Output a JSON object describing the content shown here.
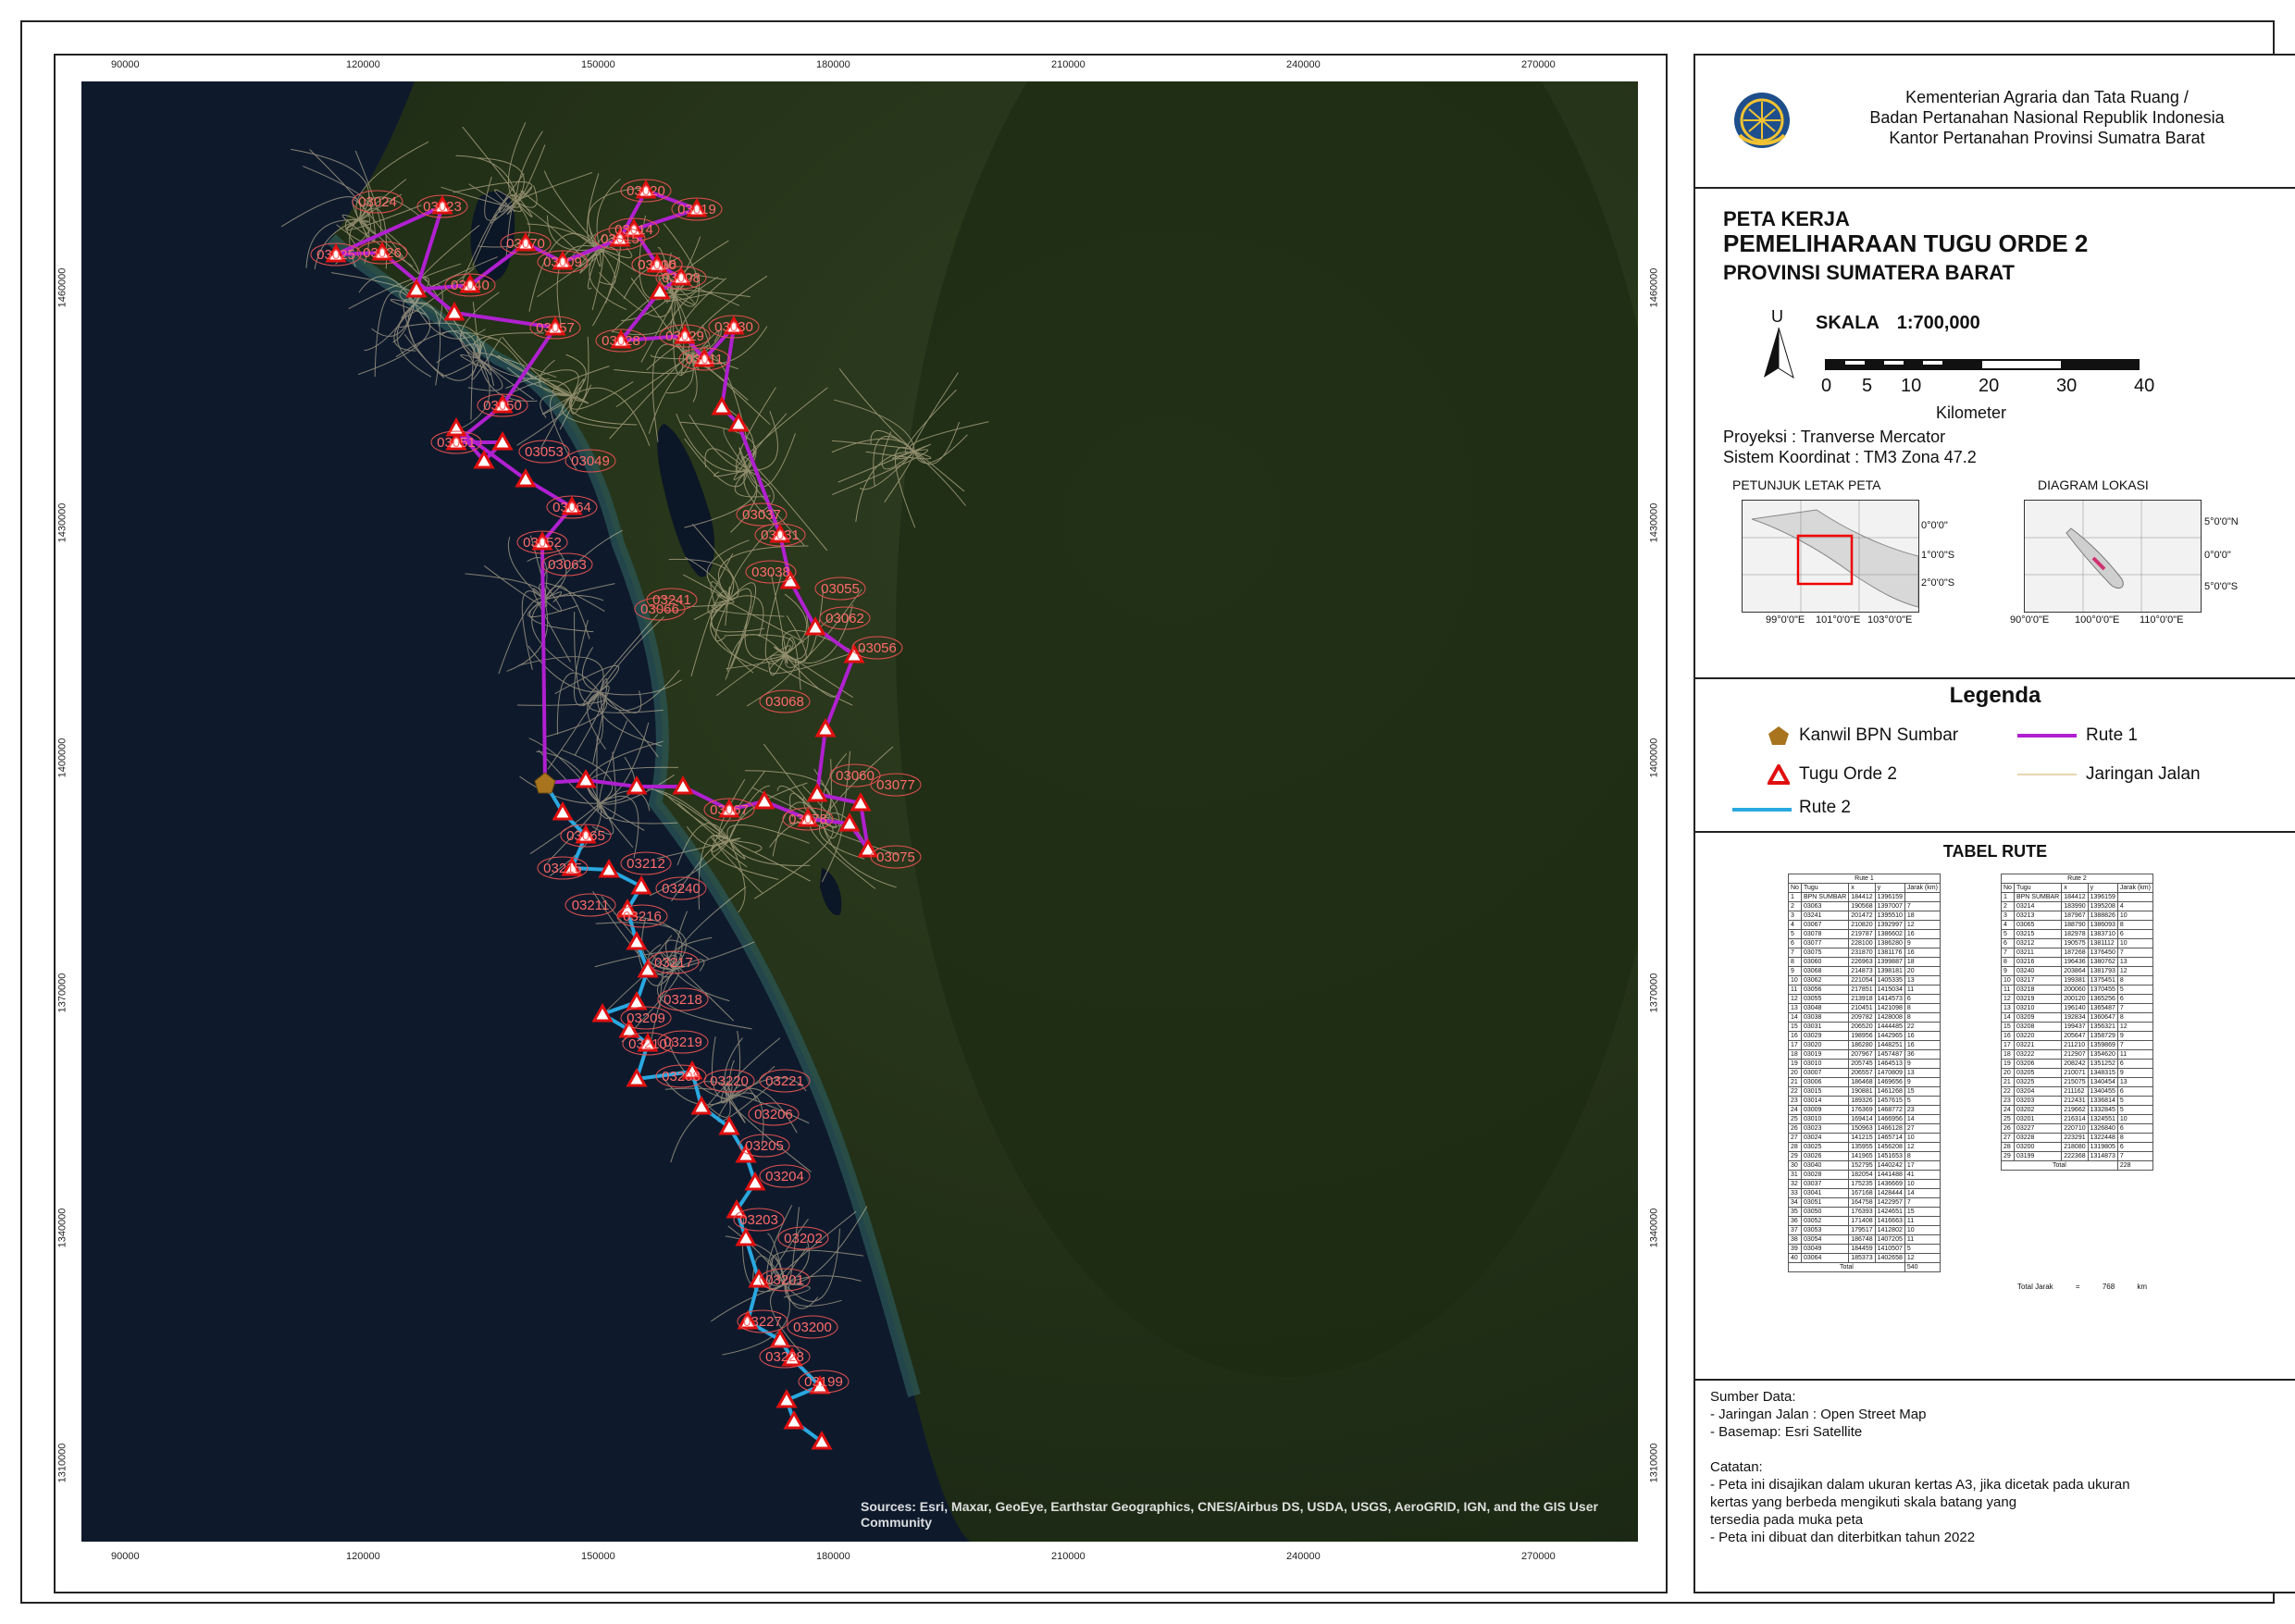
{
  "map": {
    "attribution": "Sources: Esri, Maxar, GeoEye, Earthstar Geographics, CNES/Airbus DS, USDA, USGS, AeroGRID, IGN, and the GIS User Community",
    "x_ticks": [
      "90000",
      "120000",
      "150000",
      "180000",
      "210000",
      "240000",
      "270000"
    ],
    "y_ticks": [
      "1460000",
      "1430000",
      "1400000",
      "1370000",
      "1340000",
      "1310000"
    ],
    "colors": {
      "rute1": "#b020d0",
      "rute2": "#2aa8e0",
      "jalan": "#e8d6b0",
      "tugu": "#e01010",
      "kanwil": "#a8741e"
    },
    "labels_rute1": [
      "03023",
      "03024",
      "03025",
      "03026",
      "03070",
      "03009",
      "03006",
      "03008",
      "03010",
      "03011",
      "03014",
      "03019",
      "03020",
      "03028",
      "03029",
      "03015",
      "03040",
      "03057",
      "03030",
      "03031",
      "03050",
      "03051",
      "03053",
      "03049",
      "03052",
      "03064",
      "03037",
      "03038",
      "03055",
      "03056",
      "03062",
      "03060",
      "03063",
      "03066",
      "03067",
      "03241",
      "03078",
      "03077",
      "03075",
      "03068"
    ],
    "labels_rute2": [
      "03065",
      "03215",
      "03212",
      "03211",
      "03216",
      "03240",
      "03217",
      "03218",
      "03219",
      "03209",
      "03210",
      "03208",
      "03220",
      "03221",
      "03206",
      "03205",
      "03204",
      "03203",
      "03202",
      "03201",
      "03227",
      "03200",
      "03228",
      "03199"
    ]
  },
  "header": {
    "institution_lines": [
      "Kementerian Agraria dan Tata Ruang /",
      "Badan Pertanahan Nasional Republik Indonesia",
      "Kantor Pertanahan Provinsi Sumatra Barat"
    ]
  },
  "title": {
    "line1": "PETA KERJA",
    "line2": "PEMELIHARAAN TUGU ORDE 2",
    "line3": "PROVINSI SUMATERA BARAT",
    "north": "U",
    "scale_label": "SKALA",
    "scale_value": "1:700,000",
    "scale_numbers": [
      "0",
      "5",
      "10",
      "20",
      "30",
      "40"
    ],
    "scale_unit": "Kilometer",
    "projection": "Proyeksi : Tranverse Mercator",
    "coordinate_system": "Sistem Koordinat : TM3 Zona 47.2",
    "inset1_title": "PETUNJUK LETAK PETA",
    "inset2_title": "DIAGRAM LOKASI",
    "inset1_lat": [
      "0°0'0\"",
      "1°0'0\"S",
      "2°0'0\"S"
    ],
    "inset1_lon": [
      "99°0'0\"E",
      "101°0'0\"E",
      "103°0'0\"E"
    ],
    "inset2_lat": [
      "5°0'0\"N",
      "0°0'0\"",
      "5°0'0\"S"
    ],
    "inset2_lon": [
      "90°0'0\"E",
      "100°0'0\"E",
      "110°0'0\"E"
    ]
  },
  "legend": {
    "title": "Legenda",
    "kanwil": "Kanwil BPN Sumbar",
    "tugu": "Tugu Orde 2",
    "rute2": "Rute 2",
    "rute1": "Rute 1",
    "jalan": "Jaringan Jalan"
  },
  "table": {
    "title": "TABEL RUTE",
    "rute1_header": "Rute 1",
    "rute2_header": "Rute 2",
    "columns": [
      "No",
      "Tugu",
      "x",
      "y",
      "Jarak (km)"
    ],
    "rute1_rows": [
      [
        "1",
        "BPN SUMBAR",
        "184412",
        "1396159",
        ""
      ],
      [
        "2",
        "03063",
        "190568",
        "1397007",
        "7"
      ],
      [
        "3",
        "03241",
        "201472",
        "1395510",
        "18"
      ],
      [
        "4",
        "03067",
        "210820",
        "1392997",
        "12"
      ],
      [
        "5",
        "03078",
        "219787",
        "1386602",
        "16"
      ],
      [
        "6",
        "03077",
        "228100",
        "1386280",
        "9"
      ],
      [
        "7",
        "03075",
        "231870",
        "1381176",
        "16"
      ],
      [
        "8",
        "03060",
        "226963",
        "1399887",
        "18"
      ],
      [
        "9",
        "03068",
        "214873",
        "1398181",
        "20"
      ],
      [
        "10",
        "03062",
        "221054",
        "1405335",
        "13"
      ],
      [
        "11",
        "03056",
        "217851",
        "1415034",
        "11"
      ],
      [
        "12",
        "03055",
        "213918",
        "1414573",
        "6"
      ],
      [
        "13",
        "03048",
        "210451",
        "1421098",
        "8"
      ],
      [
        "14",
        "03038",
        "209782",
        "1428008",
        "8"
      ],
      [
        "15",
        "03031",
        "206520",
        "1444485",
        "22"
      ],
      [
        "16",
        "03029",
        "198956",
        "1442965",
        "16"
      ],
      [
        "17",
        "03020",
        "186280",
        "1448251",
        "16"
      ],
      [
        "18",
        "03019",
        "207967",
        "1457487",
        "36"
      ],
      [
        "19",
        "03010",
        "205745",
        "1464513",
        "9"
      ],
      [
        "20",
        "03007",
        "206557",
        "1470809",
        "13"
      ],
      [
        "21",
        "03006",
        "186468",
        "1469656",
        "9"
      ],
      [
        "22",
        "03015",
        "190881",
        "1461268",
        "15"
      ],
      [
        "23",
        "03014",
        "189326",
        "1457615",
        "5"
      ],
      [
        "24",
        "03009",
        "176369",
        "1468772",
        "23"
      ],
      [
        "25",
        "03010",
        "169414",
        "1466956",
        "14"
      ],
      [
        "26",
        "03023",
        "150963",
        "1466128",
        "27"
      ],
      [
        "27",
        "03024",
        "141215",
        "1465714",
        "10"
      ],
      [
        "28",
        "03025",
        "135955",
        "1456208",
        "12"
      ],
      [
        "29",
        "03026",
        "141965",
        "1451653",
        "8"
      ],
      [
        "30",
        "03040",
        "152795",
        "1440242",
        "17"
      ],
      [
        "31",
        "03028",
        "182054",
        "1441488",
        "41"
      ],
      [
        "32",
        "03037",
        "175235",
        "1436669",
        "10"
      ],
      [
        "33",
        "03041",
        "167168",
        "1428444",
        "14"
      ],
      [
        "34",
        "03051",
        "164758",
        "1422957",
        "7"
      ],
      [
        "35",
        "03050",
        "176393",
        "1424651",
        "15"
      ],
      [
        "36",
        "03052",
        "171408",
        "1416663",
        "11"
      ],
      [
        "37",
        "03053",
        "179517",
        "1412802",
        "10"
      ],
      [
        "38",
        "03054",
        "186748",
        "1407205",
        "11"
      ],
      [
        "39",
        "03049",
        "184459",
        "1410507",
        "5"
      ],
      [
        "40",
        "03064",
        "185373",
        "1402658",
        "12"
      ]
    ],
    "rute1_total_label": "Total",
    "rute1_total": "540",
    "rute2_rows": [
      [
        "1",
        "BPN SUMBAR",
        "184412",
        "1396159",
        ""
      ],
      [
        "2",
        "03214",
        "183990",
        "1395208",
        "4"
      ],
      [
        "3",
        "03213",
        "187967",
        "1388826",
        "10"
      ],
      [
        "4",
        "03065",
        "188790",
        "1386093",
        "8"
      ],
      [
        "5",
        "03215",
        "182978",
        "1383710",
        "6"
      ],
      [
        "6",
        "03212",
        "190575",
        "1381112",
        "10"
      ],
      [
        "7",
        "03211",
        "187268",
        "1376450",
        "7"
      ],
      [
        "8",
        "03216",
        "196436",
        "1380762",
        "13"
      ],
      [
        "9",
        "03240",
        "203864",
        "1381793",
        "12"
      ],
      [
        "10",
        "03217",
        "199381",
        "1375451",
        "8"
      ],
      [
        "11",
        "03218",
        "200060",
        "1370455",
        "5"
      ],
      [
        "12",
        "03219",
        "200120",
        "1365256",
        "6"
      ],
      [
        "13",
        "03210",
        "196140",
        "1365487",
        "7"
      ],
      [
        "14",
        "03209",
        "192834",
        "1360647",
        "8"
      ],
      [
        "15",
        "03208",
        "199437",
        "1356321",
        "12"
      ],
      [
        "16",
        "03220",
        "205647",
        "1358729",
        "9"
      ],
      [
        "17",
        "03221",
        "211210",
        "1359869",
        "7"
      ],
      [
        "18",
        "03222",
        "212907",
        "1354620",
        "11"
      ],
      [
        "19",
        "03206",
        "208242",
        "1351252",
        "6"
      ],
      [
        "20",
        "03205",
        "210071",
        "1348315",
        "9"
      ],
      [
        "21",
        "03225",
        "215075",
        "1340454",
        "13"
      ],
      [
        "22",
        "03204",
        "211162",
        "1340455",
        "6"
      ],
      [
        "23",
        "03203",
        "212431",
        "1336814",
        "5"
      ],
      [
        "24",
        "03202",
        "219662",
        "1332845",
        "5"
      ],
      [
        "25",
        "03201",
        "216314",
        "1324551",
        "10"
      ],
      [
        "26",
        "03227",
        "220710",
        "1326840",
        "6"
      ],
      [
        "27",
        "03228",
        "223291",
        "1322448",
        "8"
      ],
      [
        "28",
        "03200",
        "218080",
        "1319805",
        "6"
      ],
      [
        "29",
        "03199",
        "222368",
        "1314873",
        "7"
      ]
    ],
    "rute2_total_label": "Total",
    "rute2_total": "228",
    "total_label": "Total Jarak",
    "total_eq": "=",
    "total_value": "768",
    "total_unit": "km"
  },
  "notes": {
    "lines": [
      "Sumber Data:",
      "- Jaringan Jalan : Open Street Map",
      "- Basemap: Esri Satellite",
      "",
      "Catatan:",
      "- Peta ini disajikan dalam ukuran kertas A3, jika dicetak pada ukuran",
      "kertas yang berbeda mengikuti skala batang yang",
      "tersedia pada muka peta",
      "- Peta ini dibuat dan diterbitkan tahun 2022"
    ]
  }
}
